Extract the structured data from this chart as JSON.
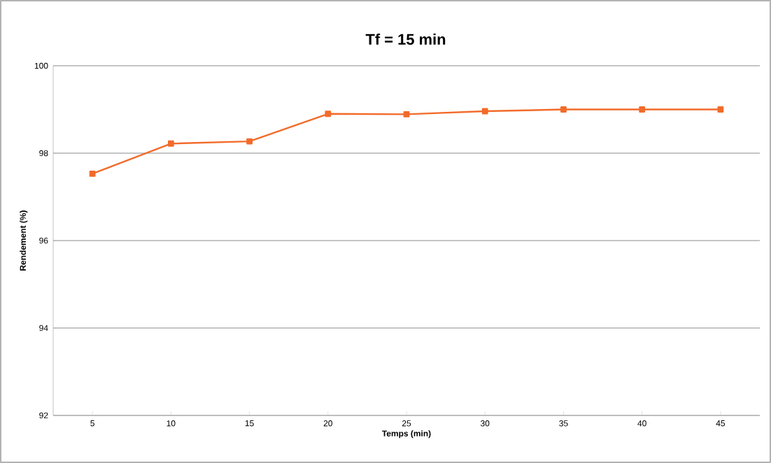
{
  "chart_data": {
    "type": "line",
    "title": "Tf = 15 min",
    "xlabel": "Temps (min)",
    "ylabel": "Rendement (%)",
    "categories": [
      "5",
      "10",
      "15",
      "20",
      "25",
      "30",
      "35",
      "40",
      "45"
    ],
    "series": [
      {
        "color": "#f26b2a",
        "values": [
          97.53,
          98.22,
          98.27,
          98.9,
          98.89,
          98.96,
          99.0,
          99.0,
          99.0
        ]
      }
    ],
    "ylim": [
      92,
      100
    ],
    "yticks": [
      92,
      94,
      96,
      98,
      100
    ],
    "grid": "y",
    "marker": "square",
    "line_style": "solid"
  }
}
